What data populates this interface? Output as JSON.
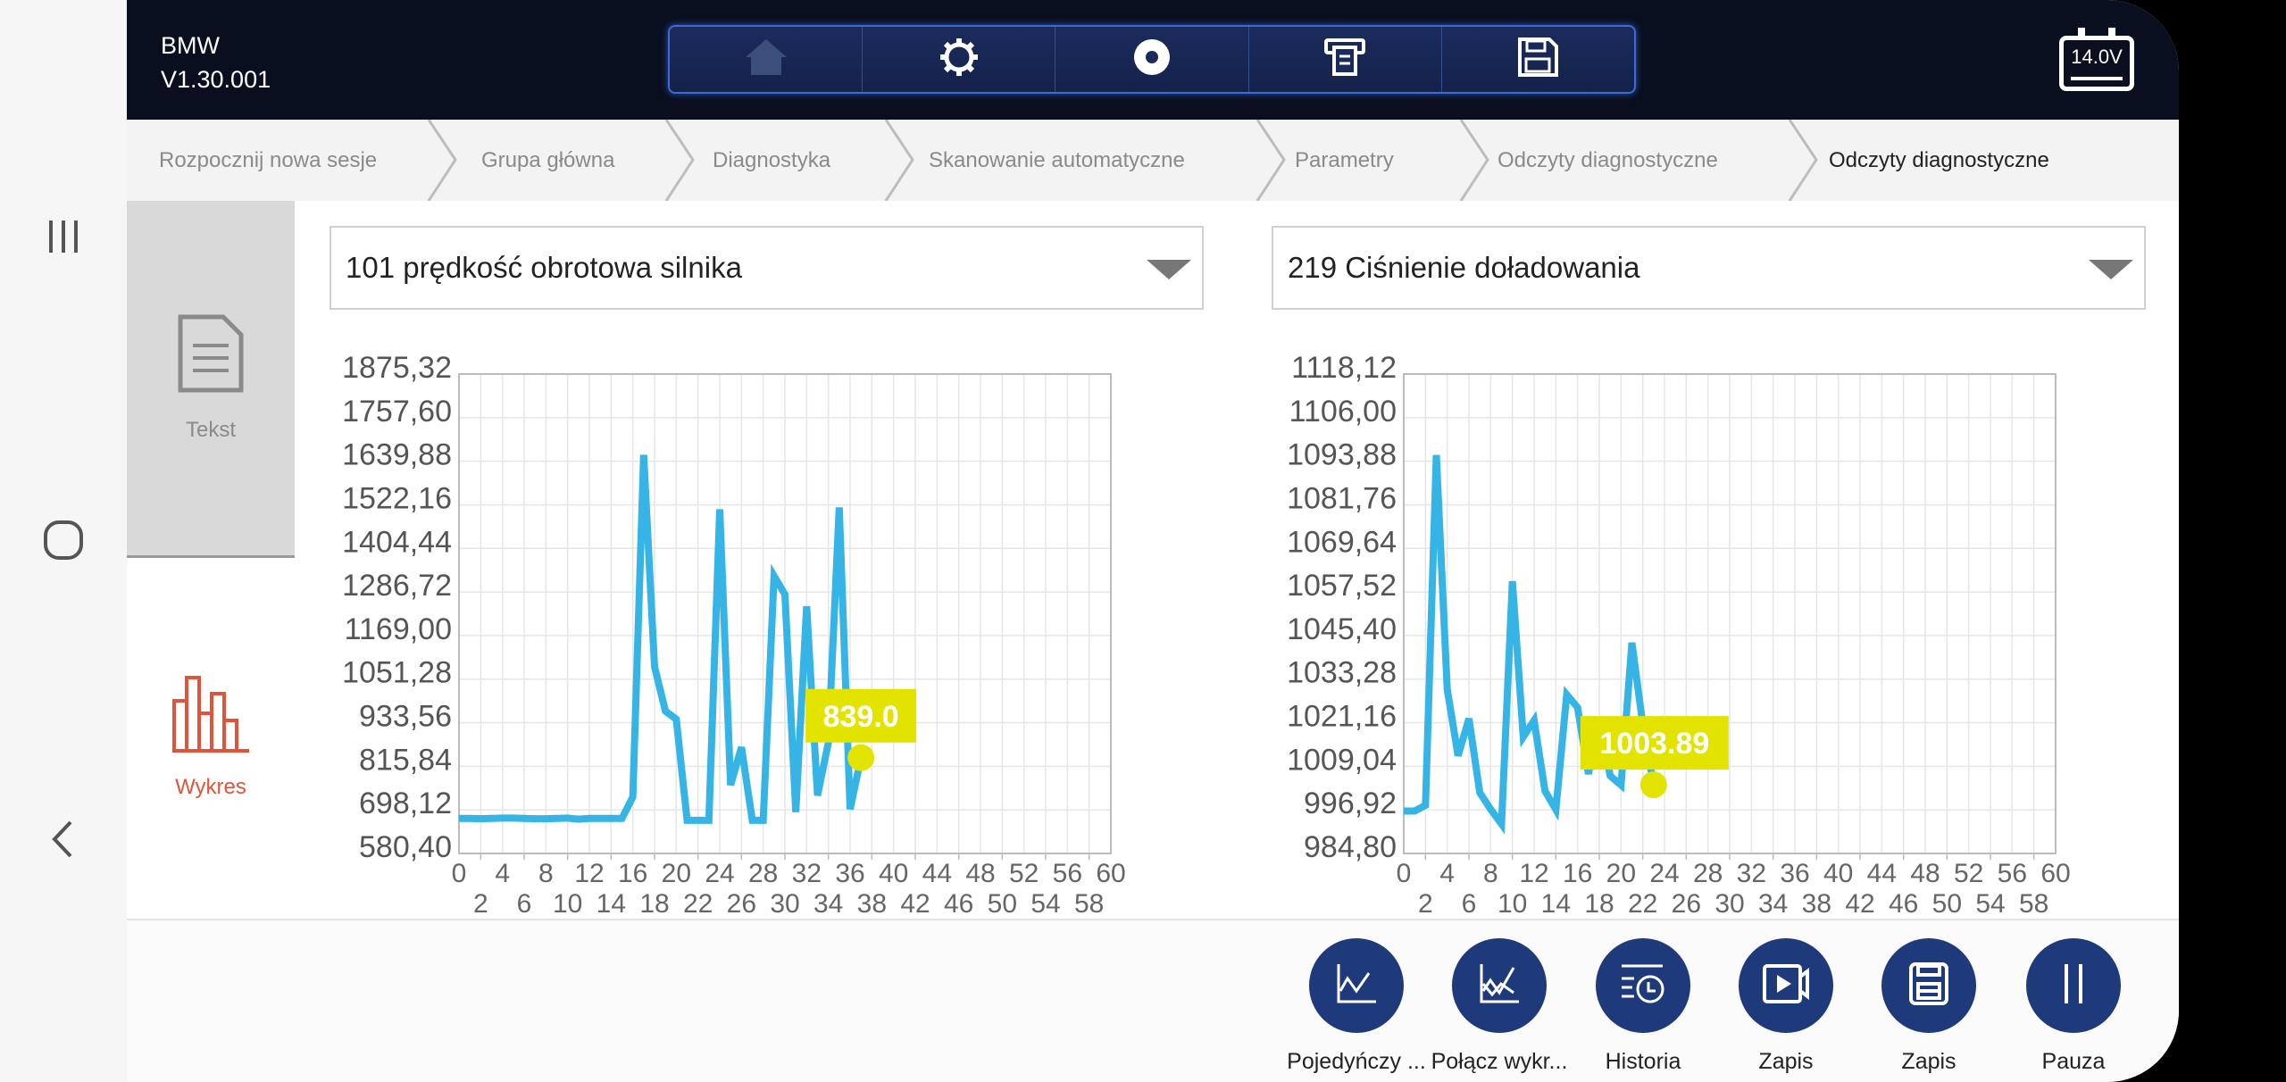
{
  "header": {
    "brand": "BMW",
    "version": "V1.30.001",
    "battery": "14.0V",
    "toolbar": [
      {
        "icon": "home-icon"
      },
      {
        "icon": "gear-icon"
      },
      {
        "icon": "record-icon"
      },
      {
        "icon": "printer-icon"
      },
      {
        "icon": "save-icon"
      }
    ]
  },
  "breadcrumb": [
    "Rozpocznij nowa sesje",
    "Grupa główna",
    "Diagnostyka",
    "Skanowanie automatyczne",
    "Parametry",
    "Odczyty diagnostyczne",
    "Odczyty diagnostyczne"
  ],
  "tabs": [
    {
      "label": "Tekst",
      "icon": "document-icon"
    },
    {
      "label": "Wykres",
      "icon": "bar-chart-icon"
    }
  ],
  "colors": {
    "line": "#36b4e5",
    "tooltip": "#e3e300",
    "accent": "#e0553a",
    "button": "#1f3a7a"
  },
  "chart_data": [
    {
      "type": "line",
      "title": "101 prędkość obrotowa silnika",
      "yticks": [
        "580,40",
        "698,12",
        "815,84",
        "933,56",
        "1051,28",
        "1169,00",
        "1286,72",
        "1404,44",
        "1522,16",
        "1639,88",
        "1757,60",
        "1875,32"
      ],
      "ylim": [
        580.4,
        1875.32
      ],
      "xlim": [
        0,
        60
      ],
      "xticks": [
        "0",
        "2",
        "4",
        "6",
        "8",
        "10",
        "12",
        "14",
        "16",
        "18",
        "20",
        "22",
        "24",
        "26",
        "28",
        "30",
        "32",
        "34",
        "36",
        "38",
        "40",
        "42",
        "44",
        "46",
        "48",
        "50",
        "52",
        "54",
        "56",
        "58",
        "60"
      ],
      "x": [
        0,
        1,
        2,
        3,
        4,
        5,
        6,
        7,
        8,
        9,
        10,
        11,
        12,
        13,
        14,
        15,
        16,
        17,
        18,
        19,
        20,
        21,
        22,
        23,
        24,
        25,
        26,
        27,
        28,
        29,
        30,
        31,
        32,
        33,
        34,
        35,
        36,
        37
      ],
      "y": [
        675,
        675,
        674,
        675,
        676,
        676,
        675,
        674,
        674,
        675,
        676,
        673,
        675,
        675,
        675,
        675,
        733,
        1657,
        1085,
        965,
        943,
        670,
        670,
        670,
        1510,
        765,
        867,
        670,
        670,
        1330,
        1280,
        692,
        1248,
        737,
        880,
        1515,
        700,
        839
      ],
      "tooltip": "839.0"
    },
    {
      "type": "line",
      "title": "219 Ciśnienie doładowania",
      "yticks": [
        "984,80",
        "996,92",
        "1009,04",
        "1021,16",
        "1033,28",
        "1045,40",
        "1057,52",
        "1069,64",
        "1081,76",
        "1093,88",
        "1106,00",
        "1118,12"
      ],
      "ylim": [
        984.8,
        1118.12
      ],
      "xlim": [
        0,
        60
      ],
      "xticks": [
        "0",
        "2",
        "4",
        "6",
        "8",
        "10",
        "12",
        "14",
        "16",
        "18",
        "20",
        "22",
        "24",
        "26",
        "28",
        "30",
        "32",
        "34",
        "36",
        "38",
        "40",
        "42",
        "44",
        "46",
        "48",
        "50",
        "52",
        "54",
        "56",
        "58",
        "60"
      ],
      "x": [
        0,
        1,
        2,
        3,
        4,
        5,
        6,
        7,
        8,
        9,
        10,
        11,
        12,
        13,
        14,
        15,
        16,
        17,
        18,
        19,
        20,
        21,
        22,
        23
      ],
      "y": [
        996.6,
        996.6,
        998.2,
        1095.6,
        1030.5,
        1012.0,
        1022.3,
        1001.7,
        997.1,
        993.0,
        1060.5,
        1017.2,
        1021.8,
        1002.2,
        997.0,
        1029.0,
        1025.4,
        1006.9,
        1022.3,
        1006.4,
        1003.8,
        1043.4,
        1020.7,
        1003.89
      ],
      "tooltip": "1003.89"
    }
  ],
  "actions": [
    {
      "label": "Pojedyńczy ...",
      "icon": "single-chart-icon"
    },
    {
      "label": "Połącz wykr...",
      "icon": "merge-chart-icon"
    },
    {
      "label": "Historia",
      "icon": "history-icon"
    },
    {
      "label": "Zapis",
      "icon": "video-record-icon"
    },
    {
      "label": "Zapis",
      "icon": "save-icon"
    },
    {
      "label": "Pauza",
      "icon": "pause-icon"
    }
  ]
}
